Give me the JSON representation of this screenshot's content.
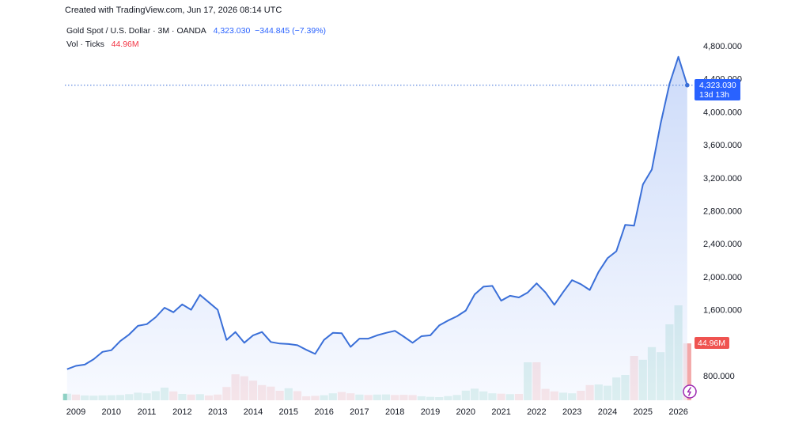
{
  "header": {
    "credit": "Created with TradingView.com, Jun 17, 2026 08:14 UTC"
  },
  "legend": {
    "symbol": "Gold Spot / U.S. Dollar · 3M · OANDA",
    "last_price": "4,323.030",
    "change": "−344.845 (−7.39%)",
    "vol_label": "Vol · Ticks",
    "vol_value": "44.96M"
  },
  "price_tag": {
    "price": "4,323.030",
    "countdown": "13d 13h"
  },
  "volume_tag": {
    "value": "44.96M"
  },
  "colors": {
    "line": "#3a6fd8",
    "area_top": "#bccff7",
    "area_bottom": "#f5f8ff",
    "vol_up": "#8fd1c4",
    "vol_down": "#f3a8a8",
    "tag_price": "#2962ff",
    "tag_vol": "#ef5350",
    "lightning": "#9c27b0"
  },
  "chart_data": {
    "type": "area",
    "title": "Gold Spot / U.S. Dollar · 3M · OANDA",
    "x_start": 2008.75,
    "x_step": 0.25,
    "x_ticks": [
      "2009",
      "2010",
      "2011",
      "2012",
      "2013",
      "2014",
      "2015",
      "2016",
      "2017",
      "2018",
      "2019",
      "2020",
      "2021",
      "2022",
      "2023",
      "2024",
      "2025",
      "2026"
    ],
    "ylim": [
      440,
      4900
    ],
    "y_ticks": [
      800,
      1200,
      1600,
      2000,
      2400,
      2800,
      3200,
      3600,
      4000,
      4400,
      4800
    ],
    "y_tick_labels": [
      "800.000",
      "",
      "1,600.000",
      "2,000.000",
      "2,400.000",
      "2,800.000",
      "3,200.000",
      "3,600.000",
      "4,000.000",
      "4,400.000",
      "4,800.000"
    ],
    "price": [
      880,
      920,
      935,
      1000,
      1090,
      1110,
      1220,
      1300,
      1405,
      1425,
      1510,
      1625,
      1570,
      1665,
      1600,
      1780,
      1690,
      1600,
      1235,
      1330,
      1200,
      1290,
      1330,
      1210,
      1190,
      1185,
      1170,
      1115,
      1065,
      1235,
      1320,
      1315,
      1150,
      1250,
      1250,
      1290,
      1320,
      1345,
      1275,
      1200,
      1280,
      1290,
      1410,
      1470,
      1520,
      1590,
      1785,
      1880,
      1890,
      1710,
      1770,
      1750,
      1810,
      1920,
      1810,
      1660,
      1815,
      1960,
      1910,
      1840,
      2060,
      2225,
      2310,
      2630,
      2620,
      3120,
      3300,
      3860,
      4340,
      4668,
      4323
    ],
    "volume_label": "Vol · Ticks",
    "volume_m": [
      5.2,
      4.5,
      3.8,
      3.6,
      3.9,
      4.0,
      4.2,
      4.8,
      6.0,
      5.5,
      7.2,
      10.0,
      7.0,
      5.0,
      4.5,
      4.8,
      3.8,
      4.5,
      10.5,
      20.5,
      19.0,
      15.5,
      12.0,
      10.8,
      7.5,
      9.5,
      7.2,
      3.2,
      3.5,
      4.0,
      5.5,
      6.5,
      5.5,
      4.5,
      4.2,
      4.5,
      4.6,
      4.2,
      4.3,
      4.1,
      3.2,
      2.7,
      2.5,
      3.3,
      4.2,
      7.6,
      9.2,
      7.0,
      5.5,
      5.2,
      4.8,
      5.0,
      30.0,
      30.0,
      9.0,
      7.0,
      6.0,
      5.5,
      7.5,
      12.0,
      12.5,
      11.5,
      18.0,
      20.0,
      35.0,
      32.0,
      42.0,
      38.0,
      60.0,
      75.0,
      44.96
    ],
    "volume_up": [
      true,
      false,
      true,
      true,
      true,
      true,
      true,
      true,
      true,
      true,
      true,
      true,
      false,
      true,
      false,
      true,
      false,
      false,
      false,
      false,
      false,
      false,
      false,
      false,
      false,
      true,
      false,
      false,
      false,
      true,
      true,
      false,
      false,
      true,
      false,
      true,
      true,
      false,
      false,
      false,
      true,
      true,
      true,
      true,
      true,
      true,
      true,
      true,
      true,
      false,
      true,
      false,
      true,
      false,
      false,
      false,
      true,
      true,
      false,
      false,
      true,
      true,
      true,
      true,
      false,
      true,
      true,
      true,
      true,
      true,
      false
    ]
  }
}
